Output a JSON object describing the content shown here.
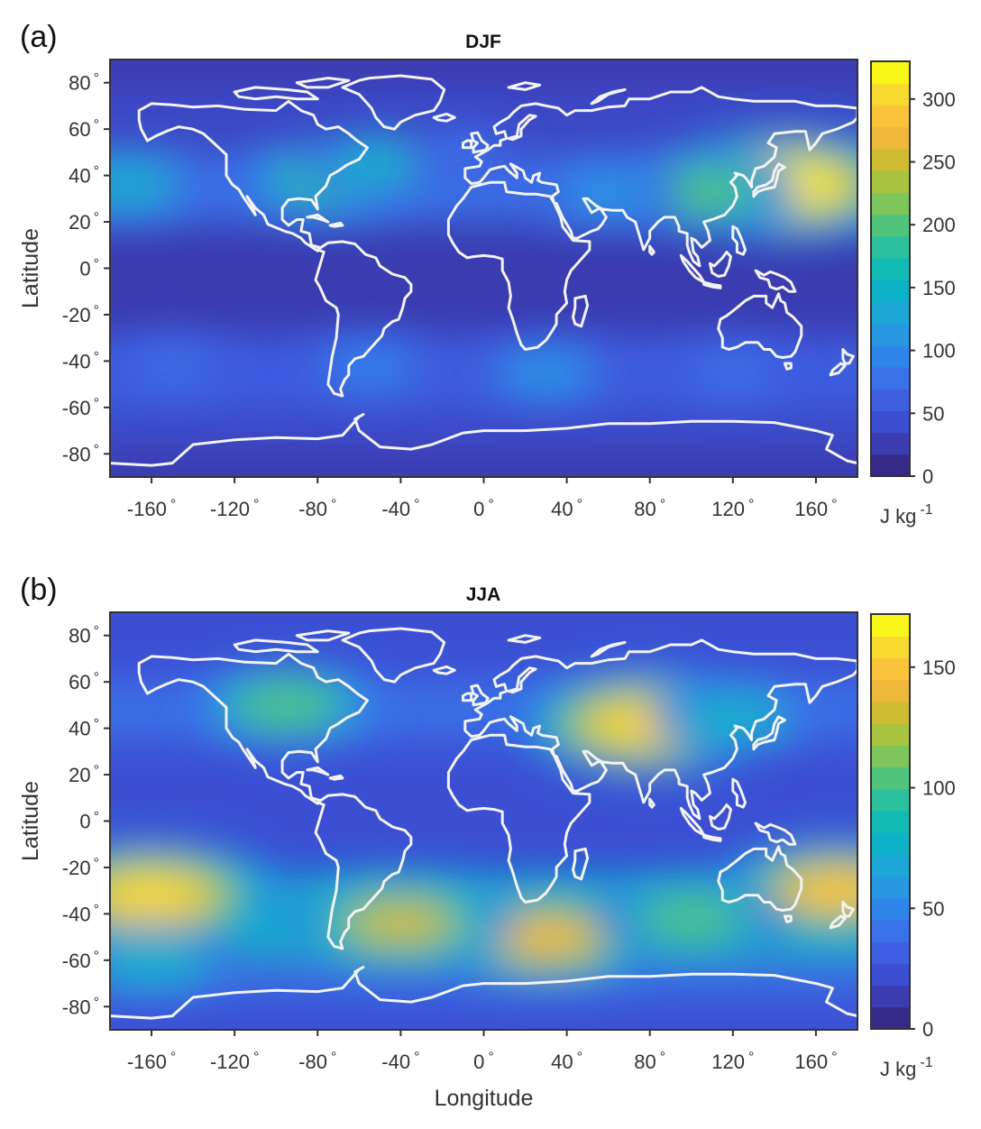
{
  "chart_data": [
    {
      "type": "heatmap",
      "panel_label": "(a)",
      "title": "DJF",
      "xlabel": "",
      "ylabel": "Latitude",
      "xlim": [
        -180,
        180
      ],
      "ylim": [
        -90,
        90
      ],
      "x_ticks": [
        -160,
        -120,
        -80,
        -40,
        0,
        40,
        80,
        120,
        160
      ],
      "x_tick_labels": [
        "-160",
        "-120",
        "-80",
        "-40",
        "0",
        "40",
        "80",
        "120",
        "160"
      ],
      "y_ticks": [
        80,
        60,
        40,
        20,
        0,
        -20,
        -40,
        -60,
        -80
      ],
      "y_tick_labels": [
        "80",
        "60",
        "40",
        "20",
        "0",
        "-20",
        "-40",
        "-60",
        "-80"
      ],
      "degree_symbol": "°",
      "colorbar": {
        "range": [
          0,
          330
        ],
        "ticks": [
          0,
          50,
          100,
          150,
          200,
          250,
          300
        ],
        "tick_labels": [
          "0",
          "50",
          "100",
          "150",
          "200",
          "250",
          "300"
        ],
        "unit_label": "J kg",
        "unit_exponent": "-1"
      },
      "background_value": 30,
      "features": [
        {
          "lon": 145,
          "lat": 36,
          "value": 320
        },
        {
          "lon": 105,
          "lat": 33,
          "value": 200
        },
        {
          "lon": 60,
          "lat": 32,
          "value": 120
        },
        {
          "lon": -172,
          "lat": 36,
          "value": 140
        },
        {
          "lon": -75,
          "lat": 38,
          "value": 180
        },
        {
          "lon": -50,
          "lat": 45,
          "value": 140
        },
        {
          "lon": -10,
          "lat": 50,
          "value": 75
        },
        {
          "lon": 30,
          "lat": -45,
          "value": 110
        },
        {
          "lon": -55,
          "lat": -42,
          "value": 95
        },
        {
          "lon": 120,
          "lat": -45,
          "value": 85
        },
        {
          "lon": -150,
          "lat": -42,
          "value": 75
        }
      ]
    },
    {
      "type": "heatmap",
      "panel_label": "(b)",
      "title": "JJA",
      "xlabel": "Longitude",
      "ylabel": "Latitude",
      "xlim": [
        -180,
        180
      ],
      "ylim": [
        -90,
        90
      ],
      "x_ticks": [
        -160,
        -120,
        -80,
        -40,
        0,
        40,
        80,
        120,
        160
      ],
      "x_tick_labels": [
        "-160",
        "-120",
        "-80",
        "-40",
        "0",
        "40",
        "80",
        "120",
        "160"
      ],
      "y_ticks": [
        80,
        60,
        40,
        20,
        0,
        -20,
        -40,
        -60,
        -80
      ],
      "y_tick_labels": [
        "80",
        "60",
        "40",
        "20",
        "0",
        "-20",
        "-40",
        "-60",
        "-80"
      ],
      "degree_symbol": "°",
      "colorbar": {
        "range": [
          0,
          172
        ],
        "ticks": [
          0,
          50,
          100,
          150
        ],
        "tick_labels": [
          "0",
          "50",
          "100",
          "150"
        ],
        "unit_label": "J kg",
        "unit_exponent": "-1"
      },
      "background_value": 20,
      "features": [
        {
          "lon": -160,
          "lat": -32,
          "value": 160
        },
        {
          "lon": 170,
          "lat": -30,
          "value": 150
        },
        {
          "lon": 30,
          "lat": -50,
          "value": 140
        },
        {
          "lon": -40,
          "lat": -44,
          "value": 130
        },
        {
          "lon": 100,
          "lat": -42,
          "value": 100
        },
        {
          "lon": 78,
          "lat": 42,
          "value": 155
        },
        {
          "lon": -95,
          "lat": 50,
          "value": 105
        },
        {
          "lon": 120,
          "lat": 45,
          "value": 80
        },
        {
          "lon": -160,
          "lat": -60,
          "value": 80
        }
      ]
    }
  ]
}
